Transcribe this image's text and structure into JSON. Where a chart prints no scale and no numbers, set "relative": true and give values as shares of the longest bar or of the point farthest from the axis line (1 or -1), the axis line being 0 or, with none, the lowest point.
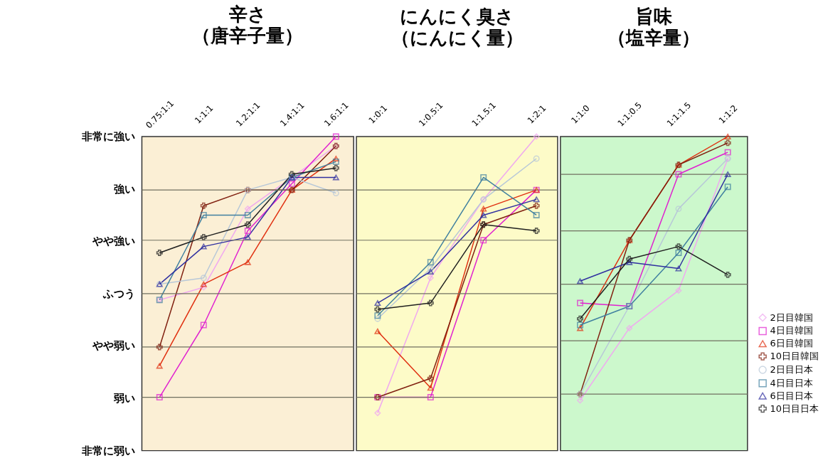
{
  "chart_data": [
    {
      "type": "line",
      "title": "辛さ",
      "subtitle": "（唐辛子量）",
      "categories": [
        "0.75:1:1",
        "1:1:1",
        "1.2:1:1",
        "1.4:1:1",
        "1.6:1:1"
      ],
      "relative": true,
      "annotations": [
        "非常に強い",
        "強い",
        "やや強い",
        "ふつう",
        "やや弱い",
        "弱い",
        "非常に弱い"
      ],
      "ref_lines": [
        {
          "axis": "y",
          "value": 0.17,
          "color": "#707060"
        },
        {
          "axis": "y",
          "value": 0.33,
          "color": "#707060"
        },
        {
          "axis": "y",
          "value": 0.5,
          "color": "#707060"
        },
        {
          "axis": "y",
          "value": 0.67,
          "color": "#707060"
        },
        {
          "axis": "y",
          "value": 0.83,
          "color": "#707060"
        }
      ],
      "series": [
        {
          "color": "#f0a8f0",
          "marker": "diamond",
          "values": [
            0.48,
            0.52,
            0.77,
            0.87,
            0.97
          ]
        },
        {
          "color": "#e020d0",
          "marker": "square",
          "values": [
            0.17,
            0.4,
            0.7,
            0.85,
            1.0
          ]
        },
        {
          "color": "#e03010",
          "marker": "triangle",
          "values": [
            0.27,
            0.53,
            0.6,
            0.83,
            0.93
          ]
        },
        {
          "color": "#802010",
          "marker": "cross",
          "values": [
            0.33,
            0.78,
            0.83,
            0.83,
            0.97
          ]
        },
        {
          "color": "#b8c8d8",
          "marker": "circle",
          "values": [
            0.53,
            0.55,
            0.83,
            0.87,
            0.82
          ]
        },
        {
          "color": "#4080a0",
          "marker": "square",
          "values": [
            0.48,
            0.75,
            0.75,
            0.87,
            0.92
          ]
        },
        {
          "color": "#3030a0",
          "marker": "triangle",
          "values": [
            0.53,
            0.65,
            0.68,
            0.87,
            0.87
          ]
        },
        {
          "color": "#202020",
          "marker": "cross",
          "values": [
            0.63,
            0.68,
            0.72,
            0.88,
            0.9
          ]
        }
      ]
    },
    {
      "type": "line",
      "title": "にんにく臭さ",
      "subtitle": "（にんにく量）",
      "categories": [
        "1:0:1",
        "1:0.5:1",
        "1:1.5:1",
        "1:2:1"
      ],
      "relative": true,
      "ref_lines": [
        {
          "axis": "y",
          "value": 0.17,
          "color": "#707060"
        },
        {
          "axis": "y",
          "value": 0.33,
          "color": "#707060"
        },
        {
          "axis": "y",
          "value": 0.5,
          "color": "#707060"
        },
        {
          "axis": "y",
          "value": 0.67,
          "color": "#707060"
        },
        {
          "axis": "y",
          "value": 0.83,
          "color": "#707060"
        }
      ],
      "series": [
        {
          "color": "#f0a8f0",
          "marker": "diamond",
          "values": [
            0.12,
            0.55,
            0.8,
            1.0
          ]
        },
        {
          "color": "#e020d0",
          "marker": "square",
          "values": [
            0.17,
            0.17,
            0.67,
            0.83
          ]
        },
        {
          "color": "#e03010",
          "marker": "triangle",
          "values": [
            0.38,
            0.2,
            0.77,
            0.83
          ]
        },
        {
          "color": "#802010",
          "marker": "cross",
          "values": [
            0.17,
            0.23,
            0.72,
            0.78
          ]
        },
        {
          "color": "#b8c8d8",
          "marker": "circle",
          "values": [
            0.42,
            0.58,
            0.8,
            0.93
          ]
        },
        {
          "color": "#4080a0",
          "marker": "square",
          "values": [
            0.43,
            0.6,
            0.87,
            0.75
          ]
        },
        {
          "color": "#3030a0",
          "marker": "triangle",
          "values": [
            0.47,
            0.57,
            0.75,
            0.8
          ]
        },
        {
          "color": "#202020",
          "marker": "cross",
          "values": [
            0.45,
            0.47,
            0.72,
            0.7
          ]
        }
      ]
    },
    {
      "type": "line",
      "title": "旨味",
      "subtitle": "（塩辛量）",
      "categories": [
        "1:1:0",
        "1:1:0.5",
        "1:1:1.5",
        "1:1:2"
      ],
      "relative": true,
      "legend": "bottom right",
      "ref_lines": [
        {
          "axis": "y",
          "value": 0.18,
          "color": "#707060"
        },
        {
          "axis": "y",
          "value": 0.35,
          "color": "#707060"
        },
        {
          "axis": "y",
          "value": 0.53,
          "color": "#707060"
        },
        {
          "axis": "y",
          "value": 0.7,
          "color": "#707060"
        },
        {
          "axis": "y",
          "value": 0.88,
          "color": "#707060"
        }
      ],
      "series": [
        {
          "name": "2日目韓国",
          "color": "#f0a8f0",
          "marker": "diamond",
          "values": [
            0.16,
            0.39,
            0.51,
            0.93
          ]
        },
        {
          "name": "4日目韓国",
          "color": "#e020d0",
          "marker": "square",
          "values": [
            0.47,
            0.46,
            0.88,
            0.95
          ]
        },
        {
          "name": "6日目韓国",
          "color": "#e03010",
          "marker": "triangle",
          "values": [
            0.39,
            0.67,
            0.91,
            1.0
          ]
        },
        {
          "name": "10日目韓国",
          "color": "#802010",
          "marker": "cross",
          "values": [
            0.18,
            0.67,
            0.91,
            0.98
          ]
        },
        {
          "name": "2日目日本",
          "color": "#b8c8d8",
          "marker": "circle",
          "values": [
            0.18,
            0.46,
            0.77,
            0.93
          ]
        },
        {
          "name": "4日目日本",
          "color": "#4080a0",
          "marker": "square",
          "values": [
            0.4,
            0.46,
            0.63,
            0.84
          ]
        },
        {
          "name": "6日目日本",
          "color": "#3030a0",
          "marker": "triangle",
          "values": [
            0.54,
            0.6,
            0.58,
            0.88
          ]
        },
        {
          "name": "10日目日本",
          "color": "#202020",
          "marker": "cross",
          "values": [
            0.42,
            0.61,
            0.65,
            0.56
          ]
        }
      ]
    }
  ]
}
